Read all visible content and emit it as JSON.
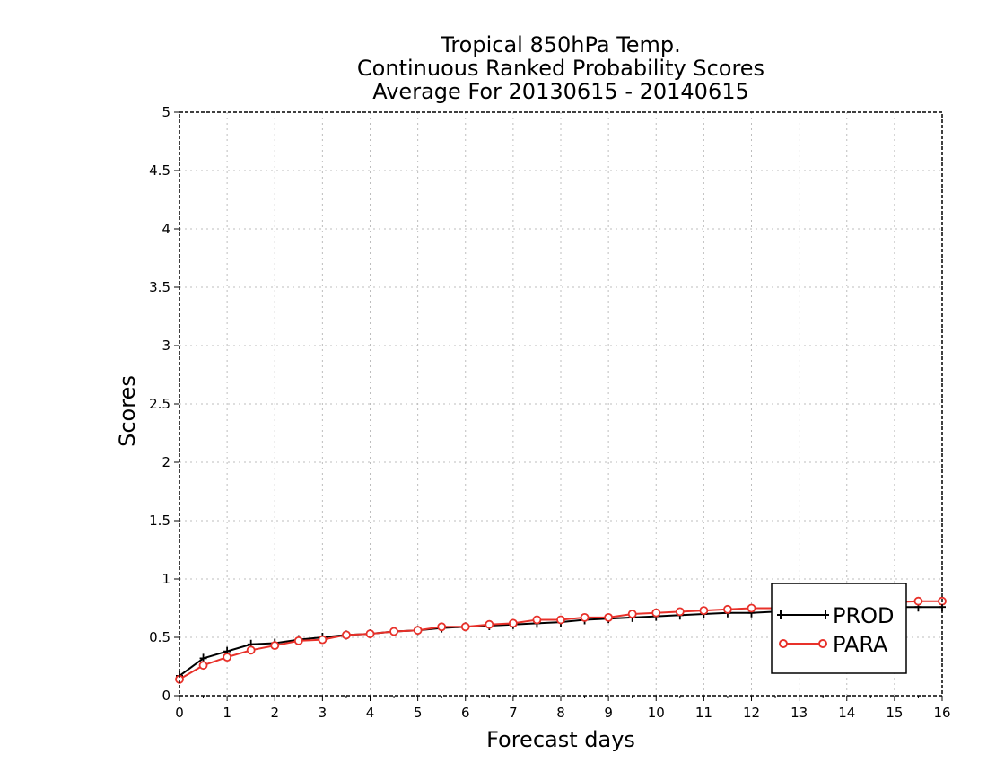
{
  "chart_data": {
    "type": "line",
    "title": [
      "Tropical 850hPa Temp.",
      "Continuous Ranked Probability Scores",
      "Average For 20130615 - 20140615"
    ],
    "xlabel": "Forecast days",
    "ylabel": "Scores",
    "xlim": [
      0,
      16
    ],
    "ylim": [
      0,
      5
    ],
    "xticks": [
      "0",
      "1",
      "2",
      "3",
      "4",
      "5",
      "6",
      "7",
      "8",
      "9",
      "10",
      "11",
      "12",
      "13",
      "14",
      "15",
      "16"
    ],
    "yticks": [
      "0",
      "0.5",
      "1",
      "1.5",
      "2",
      "2.5",
      "3",
      "3.5",
      "4",
      "4.5",
      "5"
    ],
    "grid": true,
    "legend_position": "bottom-right",
    "x": [
      0,
      0.5,
      1,
      1.5,
      2,
      2.5,
      3,
      3.5,
      4,
      4.5,
      5,
      5.5,
      6,
      6.5,
      7,
      7.5,
      8,
      8.5,
      9,
      9.5,
      10,
      10.5,
      11,
      11.5,
      12,
      12.5,
      13,
      13.5,
      14,
      14.5,
      15,
      15.5,
      16
    ],
    "series": [
      {
        "name": "PROD",
        "color": "#000000",
        "marker": "plus",
        "values": [
          0.17,
          0.32,
          0.38,
          0.44,
          0.45,
          0.48,
          0.5,
          0.52,
          0.53,
          0.55,
          0.56,
          0.58,
          0.59,
          0.6,
          0.61,
          0.62,
          0.63,
          0.65,
          0.66,
          0.67,
          0.68,
          0.69,
          0.7,
          0.71,
          0.71,
          0.72,
          0.73,
          0.74,
          0.75,
          0.75,
          0.76,
          0.76,
          0.76
        ]
      },
      {
        "name": "PARA",
        "color": "#e8312a",
        "marker": "circle",
        "values": [
          0.14,
          0.26,
          0.33,
          0.39,
          0.43,
          0.47,
          0.48,
          0.52,
          0.53,
          0.55,
          0.56,
          0.59,
          0.59,
          0.61,
          0.62,
          0.65,
          0.65,
          0.67,
          0.67,
          0.7,
          0.71,
          0.72,
          0.73,
          0.74,
          0.75,
          0.75,
          0.76,
          0.77,
          0.78,
          0.79,
          0.8,
          0.81,
          0.81
        ]
      }
    ]
  }
}
